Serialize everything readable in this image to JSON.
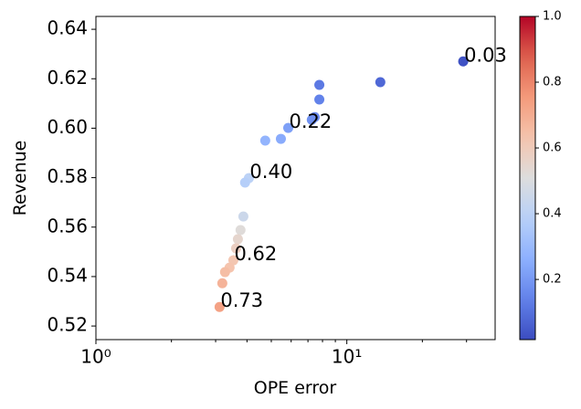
{
  "chart_data": {
    "type": "scatter",
    "xlabel": "OPE error",
    "ylabel": "Revenue",
    "xscale": "log",
    "xlim": [
      1,
      39
    ],
    "ylim": [
      0.5145,
      0.6452
    ],
    "xticks": [
      {
        "value": 1,
        "label": "10⁰"
      },
      {
        "value": 10,
        "label": "10¹"
      }
    ],
    "yticks": [
      0.52,
      0.54,
      0.56,
      0.58,
      {
        "value": 0.6,
        "label": "0.60"
      },
      0.62,
      0.64
    ],
    "colormap": "coolwarm",
    "clim": [
      0.017,
      1.0
    ],
    "cticks": [
      0.2,
      0.4,
      0.6,
      0.8,
      {
        "value": 1,
        "label": "1.0"
      }
    ],
    "series": [
      {
        "x": [
          29.1,
          13.6,
          7.77,
          7.77,
          7.45,
          7.25,
          5.84,
          5.46,
          4.73,
          4.07,
          3.93,
          3.87,
          3.77,
          3.68,
          3.62,
          3.53,
          3.41,
          3.27,
          3.19,
          3.11
        ],
        "values": [
          0.627,
          0.6186,
          0.6175,
          0.6116,
          0.6045,
          0.6034,
          0.6001,
          0.5957,
          0.595,
          0.5798,
          0.578,
          0.5643,
          0.5588,
          0.5551,
          0.5514,
          0.5466,
          0.5436,
          0.5418,
          0.5373,
          0.5277
        ],
        "c": [
          0.03,
          0.08,
          0.12,
          0.14,
          0.17,
          0.18,
          0.22,
          0.25,
          0.28,
          0.4,
          0.38,
          0.45,
          0.52,
          0.55,
          0.58,
          0.62,
          0.63,
          0.65,
          0.68,
          0.73
        ]
      }
    ],
    "annotations": [
      {
        "text": "0.03",
        "x": 29.1,
        "y": 0.627
      },
      {
        "text": "0.22",
        "x": 5.84,
        "y": 0.6001
      },
      {
        "text": "0.40",
        "x": 4.07,
        "y": 0.5798
      },
      {
        "text": "0.62",
        "x": 3.53,
        "y": 0.5466
      },
      {
        "text": "0.73",
        "x": 3.11,
        "y": 0.5277
      }
    ]
  }
}
